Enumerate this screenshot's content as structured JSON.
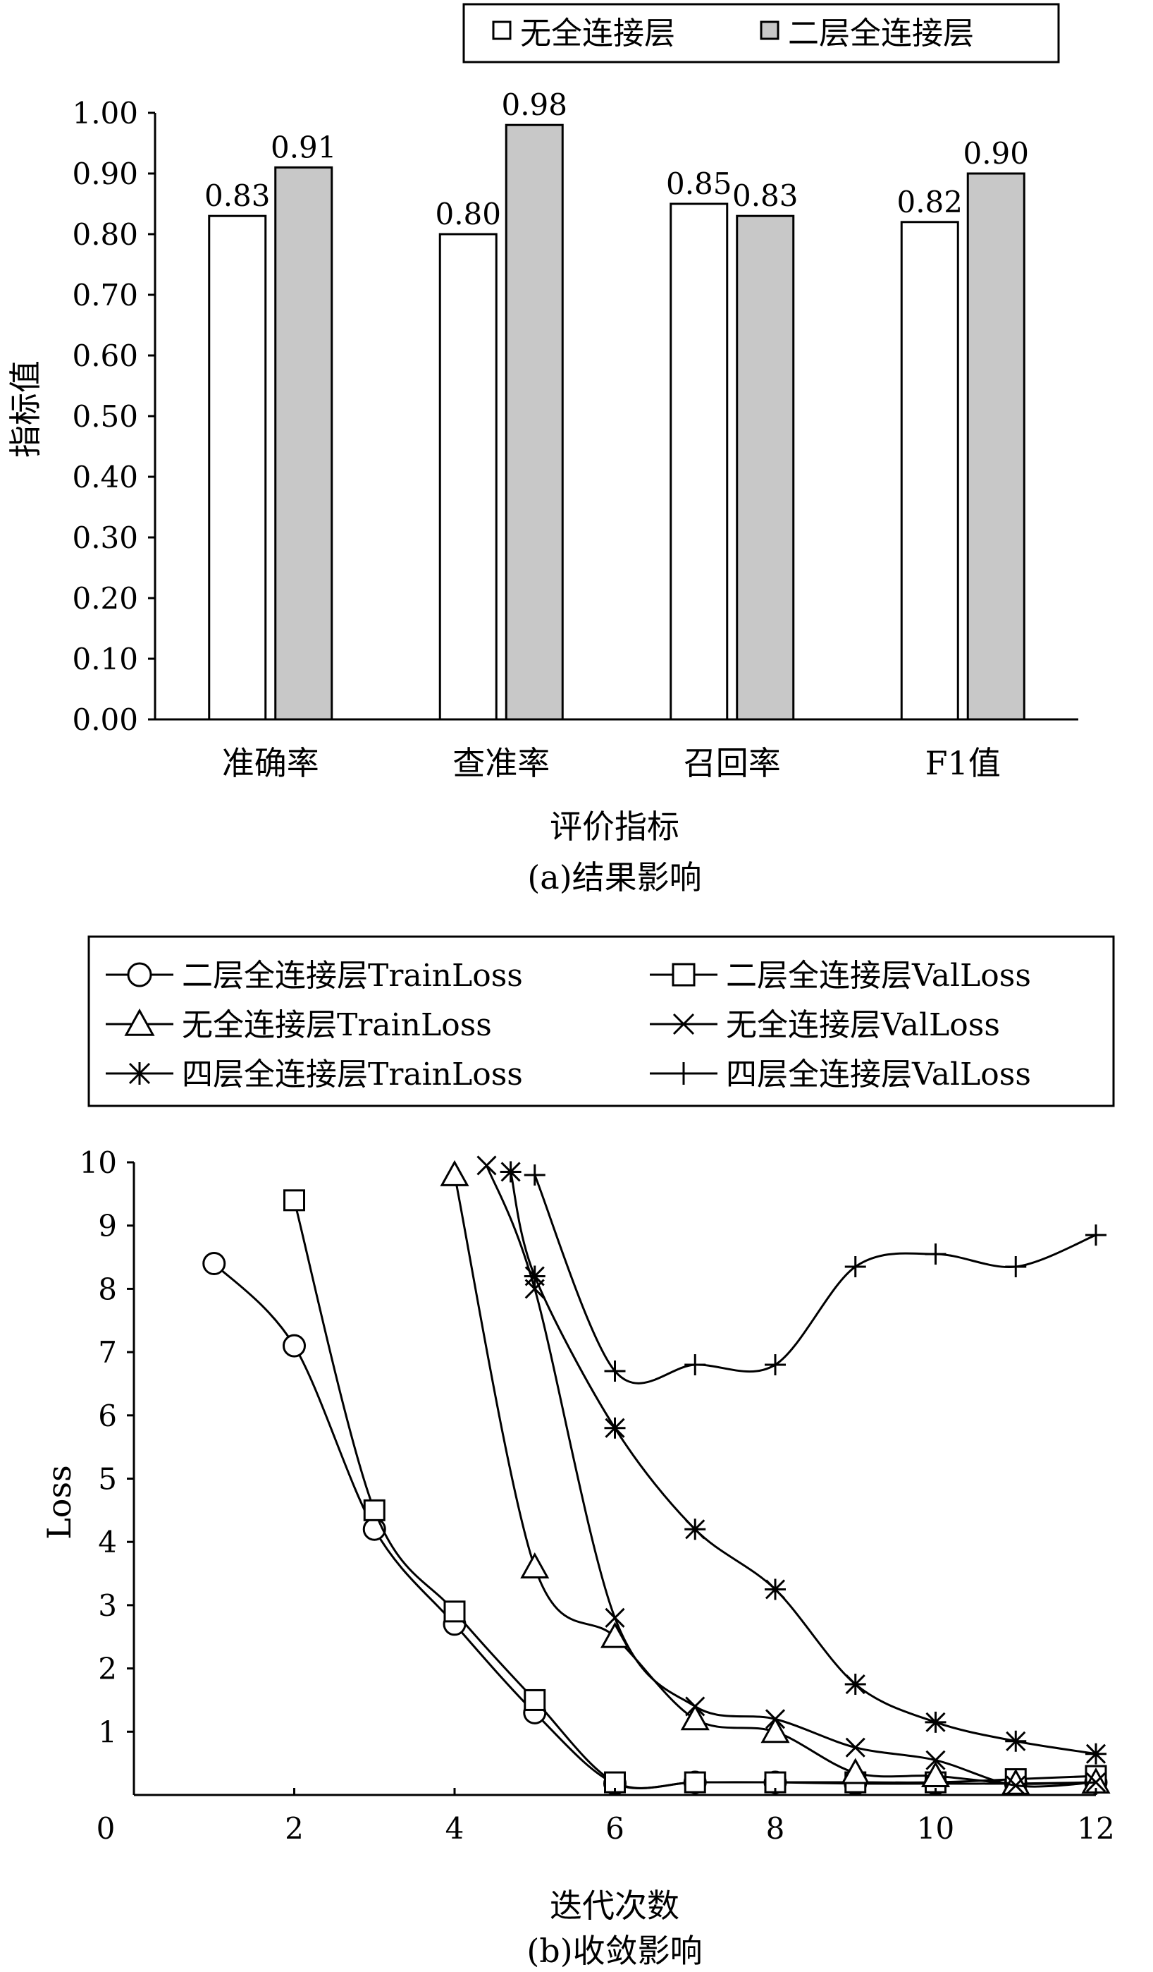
{
  "colors": {
    "bar_series_1": "#ffffff",
    "bar_series_2": "#c8c8c8",
    "ink": "#000000"
  },
  "chart_data": [
    {
      "type": "bar",
      "title": "",
      "caption": "(a)结果影响",
      "xlabel": "评价指标",
      "ylabel": "指标值",
      "ylim": [
        0,
        1.0
      ],
      "yticks": [
        "0.00",
        "0.10",
        "0.20",
        "0.30",
        "0.40",
        "0.50",
        "0.60",
        "0.70",
        "0.80",
        "0.90",
        "1.00"
      ],
      "categories": [
        "准确率",
        "查准率",
        "召回率",
        "F1值"
      ],
      "series": [
        {
          "name": "无全连接层",
          "values": [
            0.83,
            0.8,
            0.85,
            0.82
          ],
          "labels": [
            "0.83",
            "0.80",
            "0.85",
            "0.82"
          ]
        },
        {
          "name": "二层全连接层",
          "values": [
            0.91,
            0.98,
            0.83,
            0.9
          ],
          "labels": [
            "0.91",
            "0.98",
            "0.83",
            "0.90"
          ]
        }
      ],
      "legend": "top-right",
      "grid": false
    },
    {
      "type": "line",
      "title": "",
      "caption": "(b)收敛影响",
      "xlabel": "迭代次数",
      "ylabel": "Loss",
      "xlim": [
        0,
        12
      ],
      "ylim": [
        0,
        10
      ],
      "xticks": [
        "0",
        "2",
        "4",
        "6",
        "8",
        "10",
        "12"
      ],
      "yticks": [
        "1",
        "2",
        "3",
        "4",
        "5",
        "6",
        "7",
        "8",
        "9",
        "10"
      ],
      "legend": "top",
      "grid": false,
      "series": [
        {
          "name": "二层全连接层TrainLoss",
          "marker": "circle",
          "x": [
            1,
            2,
            3,
            4,
            5,
            6,
            7,
            8,
            9,
            10,
            11,
            12
          ],
          "y": [
            8.4,
            7.1,
            4.2,
            2.7,
            1.3,
            0.18,
            0.2,
            0.2,
            0.18,
            0.18,
            0.18,
            0.2
          ]
        },
        {
          "name": "二层全连接层ValLoss",
          "marker": "square",
          "x": [
            2,
            3,
            4,
            5,
            6,
            7,
            8,
            9,
            10,
            11,
            12
          ],
          "y": [
            9.4,
            4.5,
            2.9,
            1.5,
            0.2,
            0.2,
            0.2,
            0.2,
            0.2,
            0.25,
            0.3
          ]
        },
        {
          "name": "无全连接层TrainLoss",
          "marker": "triangle",
          "x": [
            4,
            5,
            6,
            7,
            8,
            9,
            10,
            11,
            12
          ],
          "y": [
            9.8,
            3.6,
            2.5,
            1.2,
            1.0,
            0.35,
            0.3,
            0.18,
            0.2
          ]
        },
        {
          "name": "无全连接层ValLoss",
          "marker": "x",
          "x": [
            4.4,
            5,
            6,
            7,
            8,
            9,
            10,
            11,
            12
          ],
          "y": [
            9.95,
            8.0,
            2.8,
            1.4,
            1.2,
            0.75,
            0.55,
            0.15,
            0.2
          ]
        },
        {
          "name": "四层全连接层TrainLoss",
          "marker": "asterisk",
          "x": [
            4.7,
            5,
            6,
            7,
            8,
            9,
            10,
            11,
            12
          ],
          "y": [
            9.85,
            8.2,
            5.8,
            4.2,
            3.25,
            1.75,
            1.15,
            0.85,
            0.65
          ]
        },
        {
          "name": "四层全连接层ValLoss",
          "marker": "plus",
          "x": [
            5,
            6,
            7,
            8,
            9,
            10,
            11,
            12
          ],
          "y": [
            9.8,
            6.7,
            6.8,
            6.8,
            8.35,
            8.55,
            8.35,
            8.85
          ]
        }
      ]
    }
  ]
}
